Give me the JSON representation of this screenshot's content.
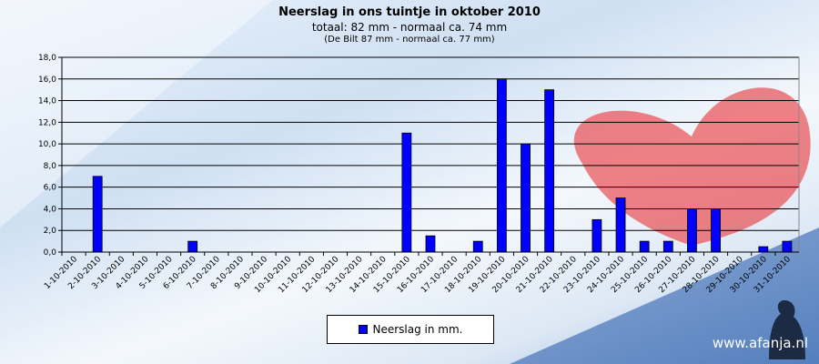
{
  "chart_data": {
    "type": "bar",
    "title": "Neerslag  in ons  tuintje  in oktober 2010",
    "subtitle": "totaal: 82 mm  - normaal  ca. 74 mm",
    "subtitle2": "(De Bilt 87  mm - normaal ca. 77 mm)",
    "categories": [
      "1-10-2010",
      "2-10-2010",
      "3-10-2010",
      "4-10-2010",
      "5-10-2010",
      "6-10-2010",
      "7-10-2010",
      "8-10-2010",
      "9-10-2010",
      "10-10-2010",
      "11-10-2010",
      "12-10-2010",
      "13-10-2010",
      "14-10-2010",
      "15-10-2010",
      "16-10-2010",
      "17-10-2010",
      "18-10-2010",
      "19-10-2010",
      "20-10-2010",
      "21-10-2010",
      "22-10-2010",
      "23-10-2010",
      "24-10-2010",
      "25-10-2010",
      "26-10-2010",
      "27-10-2010",
      "28-10-2010",
      "29-10-2010",
      "30-10-2010",
      "31-10-2010"
    ],
    "series": [
      {
        "name": "Neerslag in mm.",
        "values": [
          0,
          7,
          0,
          0,
          0,
          1,
          0,
          0,
          0,
          0,
          0,
          0,
          0,
          0,
          11,
          1.5,
          0,
          1,
          16,
          10,
          15,
          0,
          3,
          5,
          1,
          1,
          4,
          4,
          0,
          0.5,
          1
        ],
        "color": "#0000ff"
      }
    ],
    "ylim": [
      0,
      18
    ],
    "yticks": [
      "0,0",
      "2,0",
      "4,0",
      "6,0",
      "8,0",
      "10,0",
      "12,0",
      "14,0",
      "16,0",
      "18,0"
    ],
    "grid": true,
    "legend": "bottom-center"
  },
  "watermark": "www.afanja.nl"
}
